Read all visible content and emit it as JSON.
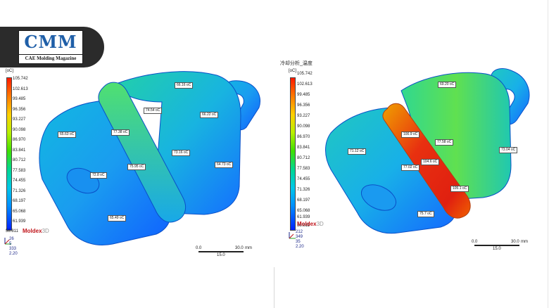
{
  "logo": {
    "title": "CMM",
    "subtitle": "CAE Molding Magazine"
  },
  "legend_ticks": [
    "105.742",
    "102.613",
    "99.485",
    "96.356",
    "93.227",
    "90.098",
    "86.970",
    "83.841",
    "80.712",
    "77.583",
    "74.455",
    "71.326",
    "68.197",
    "65.068",
    "61.939",
    "58.811"
  ],
  "left_panel": {
    "unit": "[oC]",
    "logo_brand": "Moldex",
    "logo_suffix": "3D",
    "stats": [
      "26",
      "5",
      "333",
      "2.20"
    ],
    "scale": {
      "start": "0.0",
      "end": "30.0",
      "unit": "mm",
      "mid": "15.0"
    },
    "tags": [
      "66.16 oC",
      "74.54 oC",
      "66.22 oC",
      "65.63 oC",
      "77.38 oC",
      "73.16 oC",
      "72.8 oC",
      "75.95 oC",
      "64.73 oC",
      "65.49 oC"
    ]
  },
  "right_panel": {
    "title": "冷却分析_温度",
    "unit": "[oC]",
    "logo_brand": "Moldex",
    "logo_suffix": "3D",
    "stats": [
      "212",
      "349",
      "35",
      "2.20"
    ],
    "scale": {
      "start": "0.0",
      "end": "30.0",
      "unit": "mm",
      "mid": "15.0"
    },
    "tags": [
      "69.20 oC",
      "100.9 oC",
      "77.58 oC",
      "71.12 oC",
      "73.04 oC",
      "104.6 oC",
      "77.02 oC",
      "105.1 oC",
      "75.7 oC"
    ]
  },
  "colors": {
    "logo_bg": "#2b2b2b",
    "logo_text": "#1f5fa8",
    "brand_red": "#c0141a",
    "hot": "#ff1a00",
    "cold": "#0020ff"
  }
}
